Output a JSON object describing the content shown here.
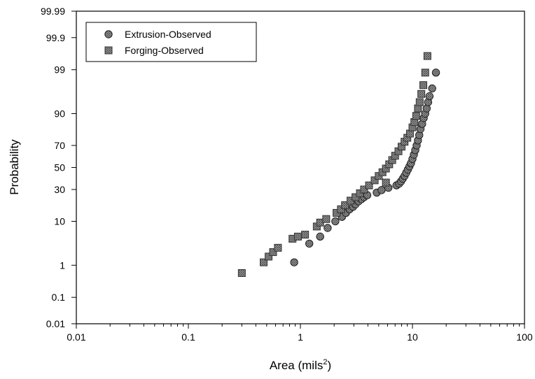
{
  "chart_data": {
    "type": "scatter",
    "title": "",
    "xlabel": "Area (mils",
    "xlabel_sup": "2",
    "xlabel_close": ")",
    "ylabel": "Probability",
    "x_scale": "log",
    "y_scale": "normal-probability",
    "xlim": [
      0.01,
      100
    ],
    "ylim": [
      0.01,
      99.99
    ],
    "x_ticks": [
      {
        "value": 0.01,
        "label": "0.01"
      },
      {
        "value": 0.1,
        "label": "0.1"
      },
      {
        "value": 1,
        "label": "1"
      },
      {
        "value": 10,
        "label": "10"
      },
      {
        "value": 100,
        "label": "100"
      }
    ],
    "y_ticks": [
      {
        "value": 0.01,
        "label": "0.01"
      },
      {
        "value": 0.1,
        "label": "0.1"
      },
      {
        "value": 1,
        "label": "1"
      },
      {
        "value": 10,
        "label": "10"
      },
      {
        "value": 30,
        "label": "30"
      },
      {
        "value": 50,
        "label": "50"
      },
      {
        "value": 70,
        "label": "70"
      },
      {
        "value": 90,
        "label": "90"
      },
      {
        "value": 99,
        "label": "99"
      },
      {
        "value": 99.9,
        "label": "99.9"
      },
      {
        "value": 99.99,
        "label": "99.99"
      }
    ],
    "grid": false,
    "legend_position": "top-left",
    "series": [
      {
        "name": "Extrusion-Observed",
        "marker": "circle",
        "color": "#555555",
        "points": [
          [
            0.88,
            1.2
          ],
          [
            1.2,
            3.5
          ],
          [
            1.5,
            5.0
          ],
          [
            1.75,
            7.5
          ],
          [
            2.05,
            10.0
          ],
          [
            2.35,
            12.0
          ],
          [
            2.55,
            14.0
          ],
          [
            2.75,
            16.0
          ],
          [
            2.95,
            17.5
          ],
          [
            3.1,
            19.0
          ],
          [
            3.3,
            21.0
          ],
          [
            3.5,
            22.5
          ],
          [
            3.7,
            24.0
          ],
          [
            3.95,
            25.5
          ],
          [
            4.8,
            27.5
          ],
          [
            5.3,
            29.5
          ],
          [
            6.1,
            31.5
          ],
          [
            7.2,
            33.5
          ],
          [
            7.6,
            35.0
          ],
          [
            7.9,
            37.0
          ],
          [
            8.2,
            39.5
          ],
          [
            8.5,
            42.0
          ],
          [
            8.8,
            45.0
          ],
          [
            9.1,
            48.0
          ],
          [
            9.4,
            51.0
          ],
          [
            9.7,
            54.0
          ],
          [
            10.0,
            58.0
          ],
          [
            10.3,
            62.0
          ],
          [
            10.6,
            66.0
          ],
          [
            10.9,
            70.0
          ],
          [
            11.2,
            74.0
          ],
          [
            11.5,
            78.0
          ],
          [
            11.8,
            82.0
          ],
          [
            12.2,
            85.0
          ],
          [
            12.6,
            88.0
          ],
          [
            13.0,
            90.0
          ],
          [
            13.4,
            92.0
          ],
          [
            13.8,
            94.0
          ],
          [
            14.2,
            95.5
          ],
          [
            15.0,
            97.0
          ],
          [
            16.2,
            98.8
          ]
        ]
      },
      {
        "name": "Forging-Observed",
        "marker": "square",
        "color": "#777777",
        "points": [
          [
            0.3,
            0.6
          ],
          [
            0.47,
            1.2
          ],
          [
            0.52,
            1.7
          ],
          [
            0.57,
            2.2
          ],
          [
            0.63,
            2.8
          ],
          [
            0.85,
            4.5
          ],
          [
            0.95,
            5.0
          ],
          [
            1.1,
            5.5
          ],
          [
            1.4,
            8.0
          ],
          [
            1.5,
            9.5
          ],
          [
            1.7,
            11.0
          ],
          [
            2.1,
            14.0
          ],
          [
            2.3,
            16.0
          ],
          [
            2.5,
            18.5
          ],
          [
            2.8,
            21.5
          ],
          [
            3.1,
            24.0
          ],
          [
            3.4,
            27.0
          ],
          [
            3.7,
            30.0
          ],
          [
            4.1,
            33.5
          ],
          [
            4.6,
            38.0
          ],
          [
            5.0,
            42.0
          ],
          [
            5.4,
            45.5
          ],
          [
            5.8,
            49.0
          ],
          [
            6.2,
            53.0
          ],
          [
            6.6,
            57.0
          ],
          [
            7.0,
            61.0
          ],
          [
            7.5,
            65.0
          ],
          [
            8.0,
            69.0
          ],
          [
            8.5,
            73.0
          ],
          [
            9.0,
            76.0
          ],
          [
            9.5,
            79.0
          ],
          [
            10.0,
            83.0
          ],
          [
            10.4,
            86.0
          ],
          [
            10.8,
            89.0
          ],
          [
            11.2,
            92.0
          ],
          [
            11.6,
            94.0
          ],
          [
            12.0,
            96.0
          ],
          [
            12.5,
            97.5
          ],
          [
            13.0,
            98.8
          ],
          [
            13.6,
            99.6
          ],
          [
            5.8,
            36.0
          ]
        ]
      }
    ]
  }
}
